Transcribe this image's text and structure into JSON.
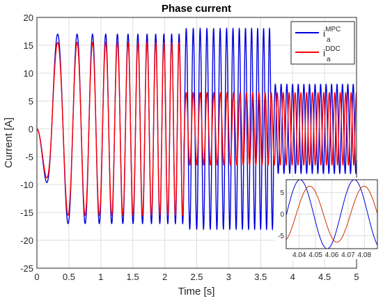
{
  "chart_data": [
    {
      "type": "line",
      "title": "Phase current",
      "xlabel": "Time [s]",
      "ylabel": "Current [A]",
      "xlim": [
        0,
        5
      ],
      "ylim": [
        -25,
        20
      ],
      "xticks": [
        "0",
        "0.5",
        "1",
        "1.5",
        "2",
        "2.5",
        "3",
        "3.5",
        "4",
        "4.5",
        "5"
      ],
      "yticks": [
        "20",
        "15",
        "10",
        "5",
        "0",
        "-5",
        "-10",
        "-15",
        "-20",
        "-25"
      ],
      "grid": true,
      "legend_position": "top-right",
      "series": [
        {
          "name_base": "i",
          "name_sub": "a",
          "name_sup": "MPC",
          "color": "#0000dd",
          "segments": [
            {
              "t_start": 0.0,
              "t_end": 2.3,
              "amplitude": 17,
              "freq_start": 1.8,
              "freq_end": 9.0
            },
            {
              "t_start": 2.3,
              "t_end": 3.7,
              "amplitude": 18,
              "freq_start": 9.0,
              "freq_end": 11.0
            },
            {
              "t_start": 3.7,
              "t_end": 5.0,
              "amplitude": 8,
              "freq_start": 11.0,
              "freq_end": 12.0
            }
          ]
        },
        {
          "name_base": "i",
          "name_sub": "a",
          "name_sup": "DDC",
          "color": "#ff0000",
          "segments": [
            {
              "t_start": 0.0,
              "t_end": 2.3,
              "amplitude": 15.5,
              "freq_start": 1.8,
              "freq_end": 9.0
            },
            {
              "t_start": 2.3,
              "t_end": 5.0,
              "amplitude": 6.5,
              "freq_start": 9.0,
              "freq_end": 12.0
            }
          ]
        }
      ]
    },
    {
      "type": "line",
      "title": "",
      "xlim": [
        4.032,
        4.088
      ],
      "ylim": [
        -8,
        8
      ],
      "xticks": [
        "4.04",
        "4.05",
        "4.06",
        "4.07",
        "4.08"
      ],
      "yticks": [
        "5",
        "0",
        "-5"
      ],
      "grid": true,
      "series": [
        {
          "color": "#0000dd",
          "amplitude": 8,
          "period": 0.0333,
          "peak_time": 4.0405
        },
        {
          "color": "#cc3300",
          "amplitude": 6.5,
          "period": 0.0333,
          "peak_time": 4.0465
        }
      ]
    }
  ]
}
